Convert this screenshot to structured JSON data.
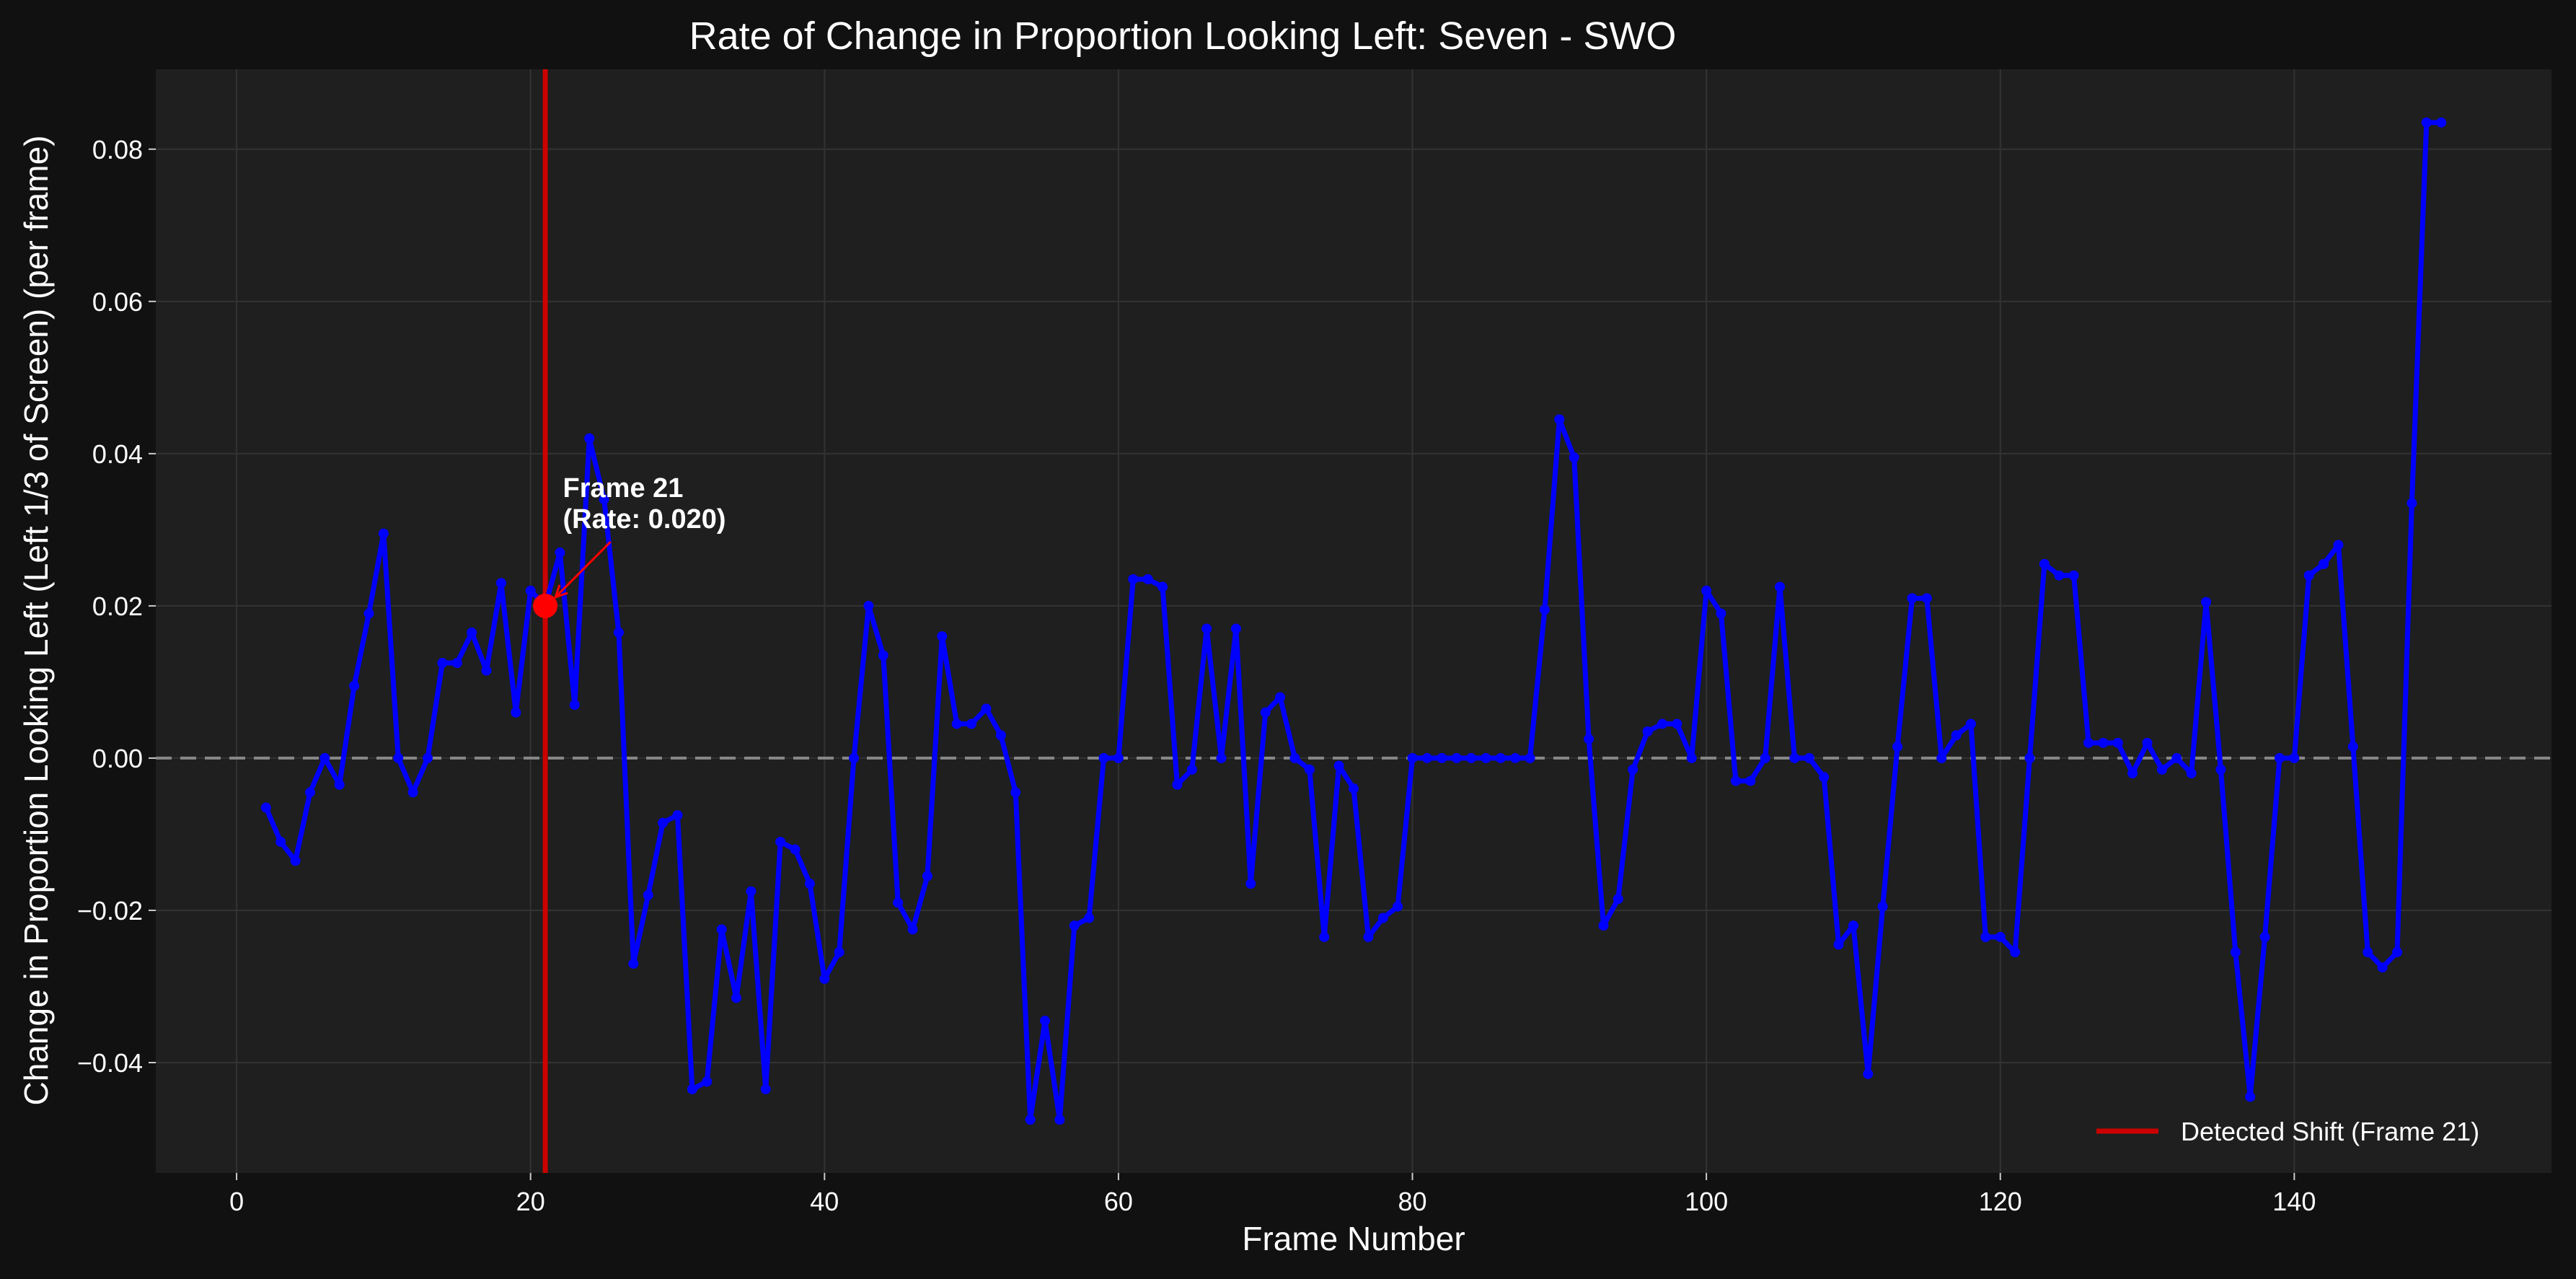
{
  "chart_data": {
    "type": "line",
    "title": "Rate of Change in Proportion Looking Left: Seven - SWO",
    "xlabel": "Frame Number",
    "ylabel": "Change in Proportion Looking Left (Left 1/3 of Screen) (per frame)",
    "xlim": [
      -5.5,
      157.5
    ],
    "ylim": [
      -0.0545,
      0.0905
    ],
    "xticks": [
      0,
      20,
      40,
      60,
      80,
      100,
      120,
      140
    ],
    "xtick_labels": [
      "0",
      "20",
      "40",
      "60",
      "80",
      "100",
      "120",
      "140"
    ],
    "yticks": [
      -0.04,
      -0.02,
      0.0,
      0.02,
      0.04,
      0.06,
      0.08
    ],
    "ytick_labels": [
      "−0.04",
      "−0.02",
      "0.00",
      "0.02",
      "0.04",
      "0.06",
      "0.08"
    ],
    "grid": true,
    "zero_line": {
      "y": 0,
      "style": "dashed",
      "color": "#888888"
    },
    "series": [
      {
        "color": "#0000ff",
        "points": [
          [
            2,
            -0.0065
          ],
          [
            3,
            -0.011
          ],
          [
            4,
            -0.0135
          ],
          [
            5,
            -0.0045
          ],
          [
            6,
            0.0
          ],
          [
            7,
            -0.0035
          ],
          [
            8,
            0.0095
          ],
          [
            9,
            0.019
          ],
          [
            10,
            0.0295
          ],
          [
            11,
            0.0
          ],
          [
            12,
            -0.0045
          ],
          [
            13,
            0.0
          ],
          [
            14,
            0.0125
          ],
          [
            15,
            0.0125
          ],
          [
            16,
            0.0165
          ],
          [
            17,
            0.0115
          ],
          [
            18,
            0.023
          ],
          [
            19,
            0.006
          ],
          [
            20,
            0.022
          ],
          [
            21,
            0.02
          ],
          [
            22,
            0.027
          ],
          [
            23,
            0.007
          ],
          [
            24,
            0.042
          ],
          [
            25,
            0.034
          ],
          [
            26,
            0.0165
          ],
          [
            27,
            -0.027
          ],
          [
            28,
            -0.018
          ],
          [
            29,
            -0.0085
          ],
          [
            30,
            -0.0075
          ],
          [
            31,
            -0.0435
          ],
          [
            32,
            -0.0425
          ],
          [
            33,
            -0.0225
          ],
          [
            34,
            -0.0315
          ],
          [
            35,
            -0.0175
          ],
          [
            36,
            -0.0435
          ],
          [
            37,
            -0.011
          ],
          [
            38,
            -0.012
          ],
          [
            39,
            -0.0165
          ],
          [
            40,
            -0.029
          ],
          [
            41,
            -0.0255
          ],
          [
            42,
            0.0
          ],
          [
            43,
            0.02
          ],
          [
            44,
            0.0135
          ],
          [
            45,
            -0.019
          ],
          [
            46,
            -0.0225
          ],
          [
            47,
            -0.0155
          ],
          [
            48,
            0.016
          ],
          [
            49,
            0.0045
          ],
          [
            50,
            0.0045
          ],
          [
            51,
            0.0065
          ],
          [
            52,
            0.003
          ],
          [
            53,
            -0.0045
          ],
          [
            54,
            -0.0475
          ],
          [
            55,
            -0.0345
          ],
          [
            56,
            -0.0475
          ],
          [
            57,
            -0.022
          ],
          [
            58,
            -0.021
          ],
          [
            59,
            0.0
          ],
          [
            60,
            0.0
          ],
          [
            61,
            0.0235
          ],
          [
            62,
            0.0235
          ],
          [
            63,
            0.0225
          ],
          [
            64,
            -0.0035
          ],
          [
            65,
            -0.0015
          ],
          [
            66,
            0.017
          ],
          [
            67,
            0.0
          ],
          [
            68,
            0.017
          ],
          [
            69,
            -0.0165
          ],
          [
            70,
            0.006
          ],
          [
            71,
            0.008
          ],
          [
            72,
            0.0
          ],
          [
            73,
            -0.0015
          ],
          [
            74,
            -0.0235
          ],
          [
            75,
            -0.001
          ],
          [
            76,
            -0.004
          ],
          [
            77,
            -0.0235
          ],
          [
            78,
            -0.021
          ],
          [
            79,
            -0.0195
          ],
          [
            80,
            0.0
          ],
          [
            81,
            0.0
          ],
          [
            82,
            0.0
          ],
          [
            83,
            0.0
          ],
          [
            84,
            0.0
          ],
          [
            85,
            0.0
          ],
          [
            86,
            0.0
          ],
          [
            87,
            0.0
          ],
          [
            88,
            0.0
          ],
          [
            89,
            0.0195
          ],
          [
            90,
            0.0445
          ],
          [
            91,
            0.0395
          ],
          [
            92,
            0.0025
          ],
          [
            93,
            -0.022
          ],
          [
            94,
            -0.0185
          ],
          [
            95,
            -0.0015
          ],
          [
            96,
            0.0035
          ],
          [
            97,
            0.0045
          ],
          [
            98,
            0.0045
          ],
          [
            99,
            0.0
          ],
          [
            100,
            0.022
          ],
          [
            101,
            0.019
          ],
          [
            102,
            -0.003
          ],
          [
            103,
            -0.003
          ],
          [
            104,
            0.0
          ],
          [
            105,
            0.0225
          ],
          [
            106,
            0.0
          ],
          [
            107,
            0.0
          ],
          [
            108,
            -0.0025
          ],
          [
            109,
            -0.0245
          ],
          [
            110,
            -0.022
          ],
          [
            111,
            -0.0415
          ],
          [
            112,
            -0.0195
          ],
          [
            113,
            0.0015
          ],
          [
            114,
            0.021
          ],
          [
            115,
            0.021
          ],
          [
            116,
            0.0
          ],
          [
            117,
            0.003
          ],
          [
            118,
            0.0045
          ],
          [
            119,
            -0.0235
          ],
          [
            120,
            -0.0235
          ],
          [
            121,
            -0.0255
          ],
          [
            122,
            0.0
          ],
          [
            123,
            0.0255
          ],
          [
            124,
            0.024
          ],
          [
            125,
            0.024
          ],
          [
            126,
            0.002
          ],
          [
            127,
            0.002
          ],
          [
            128,
            0.002
          ],
          [
            129,
            -0.002
          ],
          [
            130,
            0.002
          ],
          [
            131,
            -0.0015
          ],
          [
            132,
            0.0
          ],
          [
            133,
            -0.002
          ],
          [
            134,
            0.0205
          ],
          [
            135,
            -0.0015
          ],
          [
            136,
            -0.0255
          ],
          [
            137,
            -0.0445
          ],
          [
            138,
            -0.0235
          ],
          [
            139,
            0.0
          ],
          [
            140,
            0.0
          ],
          [
            141,
            0.024
          ],
          [
            142,
            0.0255
          ],
          [
            143,
            0.028
          ],
          [
            144,
            0.0015
          ],
          [
            145,
            -0.0255
          ],
          [
            146,
            -0.0275
          ],
          [
            147,
            -0.0255
          ],
          [
            148,
            0.0335
          ],
          [
            149,
            0.0835
          ],
          [
            150,
            0.0835
          ]
        ]
      }
    ],
    "detected_shift": {
      "frame": 21,
      "rate": 0.02,
      "color": "#cc0000",
      "legend_label": "Detected Shift (Frame 21)",
      "annotation_line1": "Frame 21",
      "annotation_line2": "(Rate: 0.020)",
      "annotation_text_x": 22.2,
      "annotation_text_y": 0.0305
    },
    "legend_placement": "lower-right",
    "colors": {
      "figure_bg": "#111111",
      "axes_bg": "#1f1f1f",
      "grid": "#333333",
      "text": "#ffffff"
    }
  }
}
